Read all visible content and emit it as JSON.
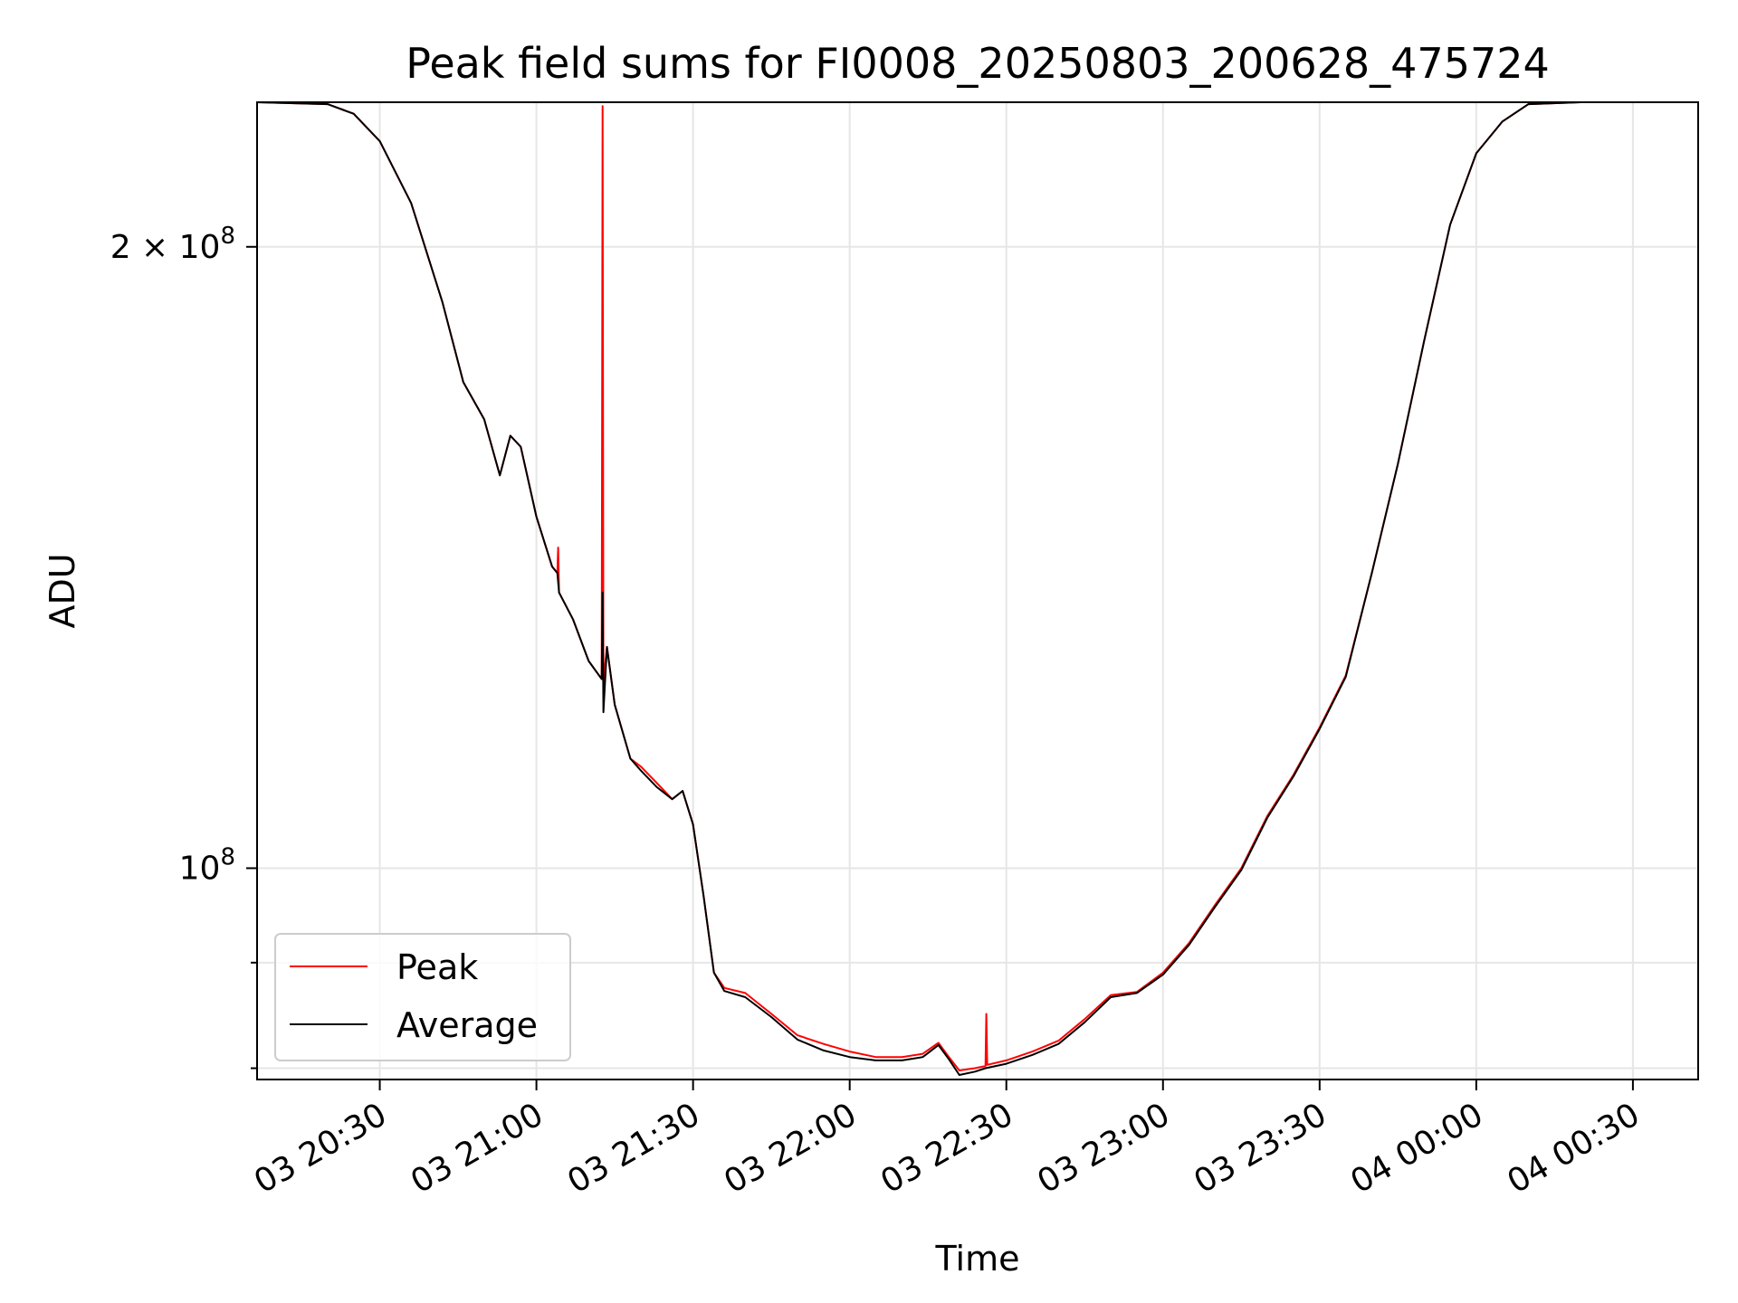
{
  "chart_data": {
    "type": "line",
    "title": "Peak field sums for FI0008_20250803_200628_475724",
    "xlabel": "Time",
    "ylabel": "ADU",
    "y_scale": "log",
    "grid": true,
    "legend_position": "lower-left",
    "x_ticks": [
      "03 20:30",
      "03 21:00",
      "03 21:30",
      "03 22:00",
      "03 22:30",
      "03 23:00",
      "03 23:30",
      "04 00:00",
      "04 00:30"
    ],
    "y_tick_labels": [
      {
        "value": 200000000,
        "base": "2 × 10",
        "exp": "8"
      },
      {
        "value": 100000000,
        "base": "10",
        "exp": "8"
      }
    ],
    "y_minor_ticks": [
      90000000,
      80000000
    ],
    "xlim": [
      "03 20:06:30",
      "04 00:42:30"
    ],
    "ylim": [
      79000000,
      235000000
    ],
    "series": [
      {
        "name": "Peak",
        "color": "#ff0000",
        "points": [
          [
            "03 20:06:30",
            235000000
          ],
          [
            "03 20:20",
            234500000
          ],
          [
            "03 20:25",
            232000000
          ],
          [
            "03 20:30",
            225000000
          ],
          [
            "03 20:36",
            210000000
          ],
          [
            "03 20:42",
            188000000
          ],
          [
            "03 20:46",
            172000000
          ],
          [
            "03 20:50",
            165000000
          ],
          [
            "03 20:53",
            155000000
          ],
          [
            "03 20:55",
            162000000
          ],
          [
            "03 20:57",
            160000000
          ],
          [
            "03 21:00",
            148000000
          ],
          [
            "03 21:03",
            140000000
          ],
          [
            "03 21:04",
            139000000
          ],
          [
            "03 21:04:10",
            143000000
          ],
          [
            "03 21:04:20",
            136000000
          ],
          [
            "03 21:07",
            132000000
          ],
          [
            "03 21:10",
            126000000
          ],
          [
            "03 21:12",
            124000000
          ],
          [
            "03 21:12:30",
            123500000
          ],
          [
            "03 21:12:40",
            234000000
          ],
          [
            "03 21:12:50",
            123000000
          ],
          [
            "03 21:13:30",
            128000000
          ],
          [
            "03 21:15",
            120000000
          ],
          [
            "03 21:18",
            113000000
          ],
          [
            "03 21:20",
            112000000
          ],
          [
            "03 21:23",
            110000000
          ],
          [
            "03 21:26",
            108000000
          ],
          [
            "03 21:28",
            109000000
          ],
          [
            "03 21:30",
            105000000
          ],
          [
            "03 21:32",
            97000000
          ],
          [
            "03 21:34",
            89000000
          ],
          [
            "03 21:36",
            87500000
          ],
          [
            "03 21:40",
            87000000
          ],
          [
            "03 21:45",
            85000000
          ],
          [
            "03 21:50",
            83000000
          ],
          [
            "03 21:55",
            82200000
          ],
          [
            "03 22:00",
            81500000
          ],
          [
            "03 22:05",
            81000000
          ],
          [
            "03 22:10",
            81000000
          ],
          [
            "03 22:14",
            81300000
          ],
          [
            "03 22:17",
            82300000
          ],
          [
            "03 22:19",
            81000000
          ],
          [
            "03 22:21",
            79800000
          ],
          [
            "03 22:24",
            80000000
          ],
          [
            "03 22:26",
            80200000
          ],
          [
            "03 22:26:10",
            85000000
          ],
          [
            "03 22:26:20",
            80300000
          ],
          [
            "03 22:30",
            80700000
          ],
          [
            "03 22:35",
            81500000
          ],
          [
            "03 22:40",
            82500000
          ],
          [
            "03 22:45",
            84500000
          ],
          [
            "03 22:50",
            86800000
          ],
          [
            "03 22:55",
            87100000
          ],
          [
            "03 23:00",
            89000000
          ],
          [
            "03 23:05",
            92000000
          ],
          [
            "03 23:10",
            96000000
          ],
          [
            "03 23:15",
            100000000
          ],
          [
            "03 23:20",
            106000000
          ],
          [
            "03 23:25",
            111000000
          ],
          [
            "03 23:30",
            117000000
          ],
          [
            "03 23:35",
            124000000
          ],
          [
            "03 23:40",
            139000000
          ],
          [
            "03 23:45",
            157000000
          ],
          [
            "03 23:50",
            180000000
          ],
          [
            "03 23:55",
            205000000
          ],
          [
            "04 00:00",
            222000000
          ],
          [
            "04 00:05",
            230000000
          ],
          [
            "04 00:10",
            234500000
          ],
          [
            "04 00:20",
            235000000
          ],
          [
            "04 00:42:30",
            235000000
          ]
        ]
      },
      {
        "name": "Average",
        "color": "#000000",
        "points": [
          [
            "03 20:06:30",
            235000000
          ],
          [
            "03 20:20",
            234500000
          ],
          [
            "03 20:25",
            232000000
          ],
          [
            "03 20:30",
            225000000
          ],
          [
            "03 20:36",
            210000000
          ],
          [
            "03 20:42",
            188000000
          ],
          [
            "03 20:46",
            172000000
          ],
          [
            "03 20:50",
            165000000
          ],
          [
            "03 20:53",
            155000000
          ],
          [
            "03 20:55",
            162000000
          ],
          [
            "03 20:57",
            160000000
          ],
          [
            "03 21:00",
            148000000
          ],
          [
            "03 21:03",
            140000000
          ],
          [
            "03 21:04",
            139000000
          ],
          [
            "03 21:04:20",
            136000000
          ],
          [
            "03 21:07",
            132000000
          ],
          [
            "03 21:10",
            126000000
          ],
          [
            "03 21:12",
            124000000
          ],
          [
            "03 21:12:30",
            123500000
          ],
          [
            "03 21:12:40",
            136000000
          ],
          [
            "03 21:12:50",
            119000000
          ],
          [
            "03 21:13:30",
            128000000
          ],
          [
            "03 21:15",
            120000000
          ],
          [
            "03 21:18",
            113000000
          ],
          [
            "03 21:20",
            111500000
          ],
          [
            "03 21:23",
            109500000
          ],
          [
            "03 21:26",
            108000000
          ],
          [
            "03 21:28",
            109000000
          ],
          [
            "03 21:30",
            105000000
          ],
          [
            "03 21:32",
            97000000
          ],
          [
            "03 21:34",
            89000000
          ],
          [
            "03 21:36",
            87200000
          ],
          [
            "03 21:40",
            86600000
          ],
          [
            "03 21:45",
            84700000
          ],
          [
            "03 21:50",
            82600000
          ],
          [
            "03 21:55",
            81600000
          ],
          [
            "03 22:00",
            81000000
          ],
          [
            "03 22:05",
            80700000
          ],
          [
            "03 22:10",
            80700000
          ],
          [
            "03 22:14",
            81000000
          ],
          [
            "03 22:17",
            82100000
          ],
          [
            "03 22:19",
            80800000
          ],
          [
            "03 22:21",
            79400000
          ],
          [
            "03 22:24",
            79700000
          ],
          [
            "03 22:26",
            80000000
          ],
          [
            "03 22:30",
            80400000
          ],
          [
            "03 22:35",
            81200000
          ],
          [
            "03 22:40",
            82200000
          ],
          [
            "03 22:45",
            84200000
          ],
          [
            "03 22:50",
            86600000
          ],
          [
            "03 22:55",
            87000000
          ],
          [
            "03 23:00",
            88800000
          ],
          [
            "03 23:05",
            91800000
          ],
          [
            "03 23:10",
            95800000
          ],
          [
            "03 23:15",
            99800000
          ],
          [
            "03 23:20",
            105800000
          ],
          [
            "03 23:25",
            110800000
          ],
          [
            "03 23:30",
            116800000
          ],
          [
            "03 23:35",
            123800000
          ],
          [
            "03 23:40",
            139000000
          ],
          [
            "03 23:45",
            157000000
          ],
          [
            "03 23:50",
            180000000
          ],
          [
            "03 23:55",
            205000000
          ],
          [
            "04 00:00",
            222000000
          ],
          [
            "04 00:05",
            230000000
          ],
          [
            "04 00:10",
            234500000
          ],
          [
            "04 00:20",
            235000000
          ],
          [
            "04 00:42:30",
            235000000
          ]
        ]
      }
    ]
  }
}
